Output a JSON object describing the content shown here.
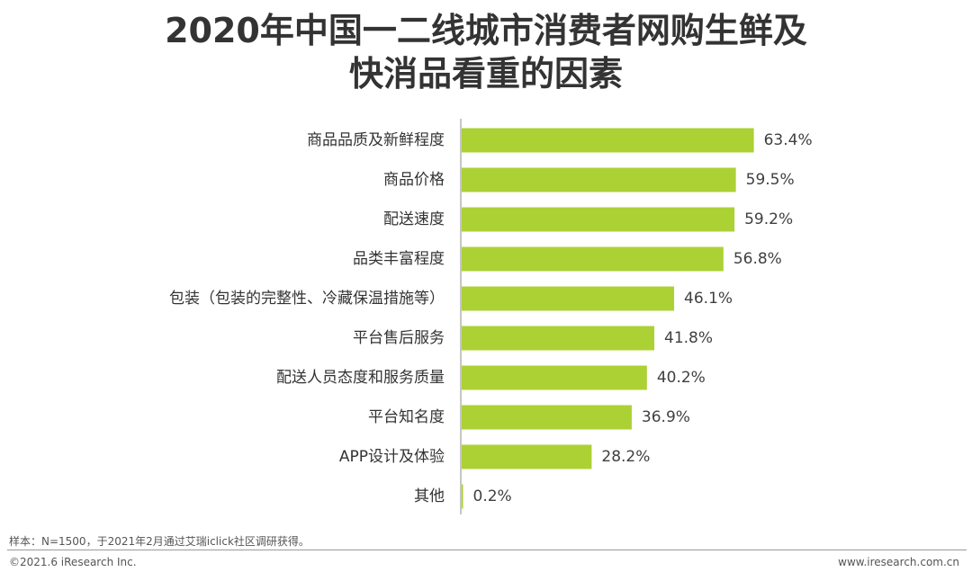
{
  "title_line1": "2020年中国一二线城市消费者网购生鲜及",
  "title_line2": "快消品看重的因素",
  "chart_data": {
    "type": "bar",
    "orientation": "horizontal",
    "categories": [
      "商品品质及新鲜程度",
      "商品价格",
      "配送速度",
      "品类丰富程度",
      "包装（包装的完整性、冷藏保温措施等）",
      "平台售后服务",
      "配送人员态度和服务质量",
      "平台知名度",
      "APP设计及体验",
      "其他"
    ],
    "values": [
      63.4,
      59.5,
      59.2,
      56.8,
      46.1,
      41.8,
      40.2,
      36.9,
      28.2,
      0.2
    ],
    "value_labels": [
      "63.4%",
      "59.5%",
      "59.2%",
      "56.8%",
      "46.1%",
      "41.8%",
      "40.2%",
      "36.9%",
      "28.2%",
      "0.2%"
    ],
    "bar_color": "#acd135",
    "axis_color": "#8c8c8c"
  },
  "footer": {
    "note": "样本：N=1500，于2021年2月通过艾瑞iclick社区调研获得。",
    "copyright": "©2021.6 iResearch Inc.",
    "website": "www.iresearch.com.cn"
  }
}
